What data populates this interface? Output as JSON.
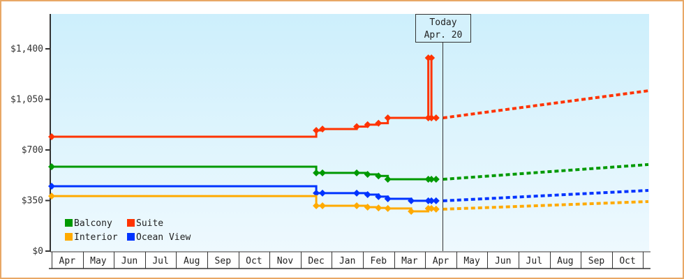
{
  "chart_data": {
    "type": "line",
    "title": "",
    "xlabel": "",
    "ylabel": "",
    "ylim": [
      0,
      1650
    ],
    "grid": false,
    "legend_position": "bottom-left inside plot",
    "y_ticks": [
      {
        "value": 0,
        "label": "$0"
      },
      {
        "value": 350,
        "label": "$350"
      },
      {
        "value": 700,
        "label": "$700"
      },
      {
        "value": 1050,
        "label": "$1,050"
      },
      {
        "value": 1400,
        "label": "$1,400"
      }
    ],
    "x_ticks": [
      "Apr",
      "May",
      "Jun",
      "Jul",
      "Aug",
      "Sep",
      "Oct",
      "Nov",
      "Dec",
      "Jan",
      "Feb",
      "Mar",
      "Apr",
      "May",
      "Jun",
      "Jul",
      "Aug",
      "Sep",
      "Oct"
    ],
    "annotation": {
      "line1": "Today",
      "line2": "Apr. 20",
      "month_index": 12.35
    },
    "series": [
      {
        "name": "Suite",
        "color": "#ff3300",
        "history": [
          {
            "m": 0.0,
            "v": 792
          },
          {
            "m": 8.5,
            "v": 792
          },
          {
            "m": 8.5,
            "v": 835
          },
          {
            "m": 8.7,
            "v": 845
          },
          {
            "m": 9.8,
            "v": 845
          },
          {
            "m": 9.8,
            "v": 862
          },
          {
            "m": 10.15,
            "v": 875
          },
          {
            "m": 10.5,
            "v": 885
          },
          {
            "m": 10.8,
            "v": 922
          },
          {
            "m": 12.1,
            "v": 922
          },
          {
            "m": 12.1,
            "v": 1337
          },
          {
            "m": 12.1,
            "v": 922
          },
          {
            "m": 12.2,
            "v": 922
          },
          {
            "m": 12.2,
            "v": 1337
          },
          {
            "m": 12.2,
            "v": 922
          },
          {
            "m": 12.35,
            "v": 922
          }
        ],
        "markers": [
          0.0,
          8.5,
          8.7,
          9.8,
          10.15,
          10.5,
          10.8,
          12.1,
          12.2,
          12.35
        ],
        "projection": [
          {
            "m": 12.35,
            "v": 922
          },
          {
            "m": 19.2,
            "v": 1110
          }
        ]
      },
      {
        "name": "Balcony",
        "color": "#009900",
        "history": [
          {
            "m": 0.0,
            "v": 584
          },
          {
            "m": 8.5,
            "v": 584
          },
          {
            "m": 8.5,
            "v": 541
          },
          {
            "m": 9.8,
            "v": 541
          },
          {
            "m": 10.15,
            "v": 531
          },
          {
            "m": 10.5,
            "v": 520
          },
          {
            "m": 10.8,
            "v": 497
          },
          {
            "m": 12.35,
            "v": 497
          }
        ],
        "markers": [
          0.0,
          8.5,
          8.7,
          9.8,
          10.15,
          10.5,
          10.8,
          12.1,
          12.2,
          12.35
        ],
        "projection": [
          {
            "m": 12.35,
            "v": 497
          },
          {
            "m": 19.2,
            "v": 599
          }
        ]
      },
      {
        "name": "Ocean View",
        "color": "#0033ff",
        "history": [
          {
            "m": 0.0,
            "v": 449
          },
          {
            "m": 8.5,
            "v": 449
          },
          {
            "m": 8.5,
            "v": 401
          },
          {
            "m": 9.8,
            "v": 401
          },
          {
            "m": 10.15,
            "v": 391
          },
          {
            "m": 10.5,
            "v": 377
          },
          {
            "m": 10.8,
            "v": 362
          },
          {
            "m": 11.55,
            "v": 348
          },
          {
            "m": 12.35,
            "v": 348
          }
        ],
        "markers": [
          0.0,
          8.5,
          8.7,
          9.8,
          10.15,
          10.5,
          10.8,
          11.55,
          12.1,
          12.2,
          12.35
        ],
        "projection": [
          {
            "m": 12.35,
            "v": 348
          },
          {
            "m": 19.2,
            "v": 420
          }
        ]
      },
      {
        "name": "Interior",
        "color": "#ffaa00",
        "history": [
          {
            "m": 0.0,
            "v": 381
          },
          {
            "m": 8.5,
            "v": 381
          },
          {
            "m": 8.5,
            "v": 314
          },
          {
            "m": 9.8,
            "v": 314
          },
          {
            "m": 10.15,
            "v": 304
          },
          {
            "m": 10.5,
            "v": 299
          },
          {
            "m": 10.8,
            "v": 295
          },
          {
            "m": 11.55,
            "v": 275
          },
          {
            "m": 12.1,
            "v": 275
          },
          {
            "m": 12.1,
            "v": 295
          },
          {
            "m": 12.35,
            "v": 290
          }
        ],
        "markers": [
          0.0,
          8.5,
          8.7,
          9.8,
          10.15,
          10.5,
          10.8,
          11.55,
          12.1,
          12.2,
          12.35
        ],
        "projection": [
          {
            "m": 12.35,
            "v": 290
          },
          {
            "m": 19.2,
            "v": 343
          }
        ]
      }
    ],
    "legend": [
      {
        "name": "Balcony",
        "color": "#009900"
      },
      {
        "name": "Suite",
        "color": "#ff3300"
      },
      {
        "name": "Interior",
        "color": "#ffaa00"
      },
      {
        "name": "Ocean View",
        "color": "#0033ff"
      }
    ]
  },
  "style": {
    "frame_border": "#e8a866",
    "plot_bg_top": "#cdeffc",
    "plot_bg_bottom": "#eef9fe",
    "axis_color": "#333333"
  }
}
